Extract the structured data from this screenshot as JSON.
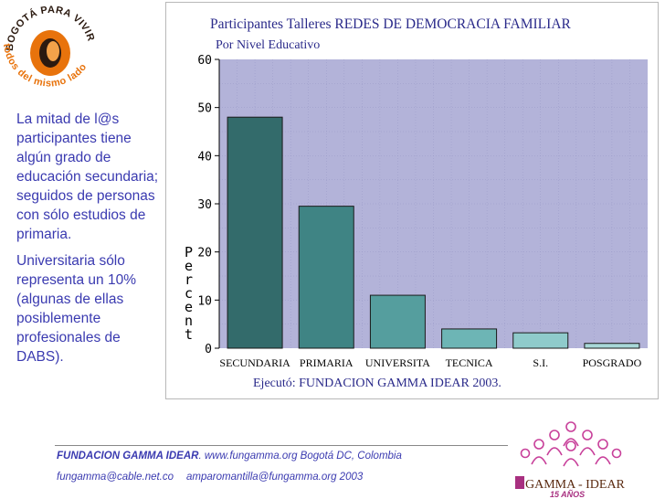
{
  "logo_top": {
    "arc_text_top": "BOGOTÁ PARA VIVIR",
    "arc_text_bottom": "todos del mismo lado",
    "colors": {
      "accent": "#e8730c",
      "ring": "#2b1a10"
    }
  },
  "left_text": {
    "paragraph_1": "La mitad de l@s\nparticipantes tiene\nalgún grado de\neducación secundaria;\nseguidos de personas\ncon sólo estudios de\nprimaria.",
    "paragraph_2": "Universitaria sólo\nrepresenta un 10%\n(algunas de ellas\nposiblemente\nprofesionales de\nDABS)."
  },
  "chart_data": {
    "type": "bar",
    "title": "Participantes Talleres REDES DE DEMOCRACIA FAMILIAR",
    "subtitle": "Por Nivel Educativo",
    "ylabel": "Percent",
    "xlabel": "",
    "categories": [
      "SECUNDARIA",
      "PRIMARIA",
      "UNIVERSITA",
      "TECNICA",
      "S.I.",
      "POSGRADO"
    ],
    "values": [
      48,
      29.5,
      11,
      4,
      3.2,
      1
    ],
    "bar_colors": [
      "#336b6b",
      "#3f8484",
      "#559e9e",
      "#6db5b5",
      "#8fcbcb",
      "#a8d8d8"
    ],
    "ylim": [
      0,
      60
    ],
    "yticks": [
      "0",
      "10",
      "20",
      "30",
      "40",
      "50",
      "60"
    ],
    "plot_background": "#b3b3d9",
    "grid": true,
    "footnote": "Ejecutó: FUNDACION GAMMA IDEAR  2003."
  },
  "footer": {
    "org": "FUNDACION GAMMA IDEAR",
    "line1_rest": ". www.fungamma.org  Bogotá DC, Colombia",
    "email_1": "fungamma@cable.net.co",
    "email_2": "amparomantilla@fungamma.org  2003"
  },
  "logo_bottom": {
    "name": "GAMMA - IDEAR",
    "years": "15 AÑOS",
    "colors": {
      "figures": "#c8409a",
      "box": "#a83080",
      "text": "#5a2a10"
    }
  }
}
